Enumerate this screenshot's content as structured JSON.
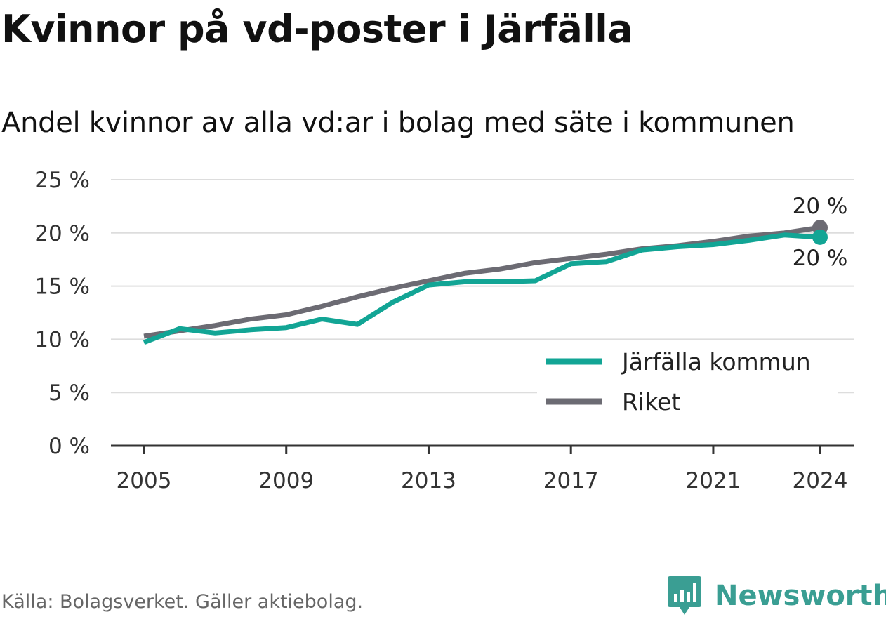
{
  "title": "Kvinnor på vd-poster i Järfälla",
  "subtitle": "Andel kvinnor av alla vd:ar i bolag med säte i kommunen",
  "source": "Källa: Bolagsverket. Gäller aktiebolag.",
  "brand": "Newsworthy",
  "colors": {
    "jarfalla": "#12a595",
    "riket": "#6c6b73",
    "brand": "#3a9e93"
  },
  "chart_data": {
    "type": "line",
    "x": [
      2005,
      2006,
      2007,
      2008,
      2009,
      2010,
      2011,
      2012,
      2013,
      2014,
      2015,
      2016,
      2017,
      2018,
      2019,
      2020,
      2021,
      2022,
      2023,
      2024
    ],
    "series": [
      {
        "name": "Järfälla kommun",
        "color": "#12a595",
        "values": [
          9.7,
          11.0,
          10.6,
          10.9,
          11.1,
          11.9,
          11.4,
          13.5,
          15.1,
          15.4,
          15.4,
          15.5,
          17.1,
          17.3,
          18.4,
          18.7,
          18.9,
          19.3,
          19.8,
          19.6
        ]
      },
      {
        "name": "Riket",
        "color": "#6c6b73",
        "values": [
          10.3,
          10.8,
          11.3,
          11.9,
          12.3,
          13.1,
          14.0,
          14.8,
          15.5,
          16.2,
          16.6,
          17.2,
          17.6,
          18.0,
          18.5,
          18.8,
          19.2,
          19.7,
          20.0,
          20.5
        ]
      }
    ],
    "end_labels": [
      "20 %",
      "20 %"
    ],
    "ylim": [
      0,
      25
    ],
    "yticks": [
      0,
      5,
      10,
      15,
      20,
      25
    ],
    "ytick_labels": [
      "0 %",
      "5 %",
      "10 %",
      "15 %",
      "20 %",
      "25 %"
    ],
    "xticks": [
      2005,
      2009,
      2013,
      2017,
      2021,
      2024
    ],
    "xtick_labels": [
      "2005",
      "2009",
      "2013",
      "2017",
      "2021",
      "2024"
    ],
    "grid": true,
    "legend_position": "bottom-right"
  }
}
